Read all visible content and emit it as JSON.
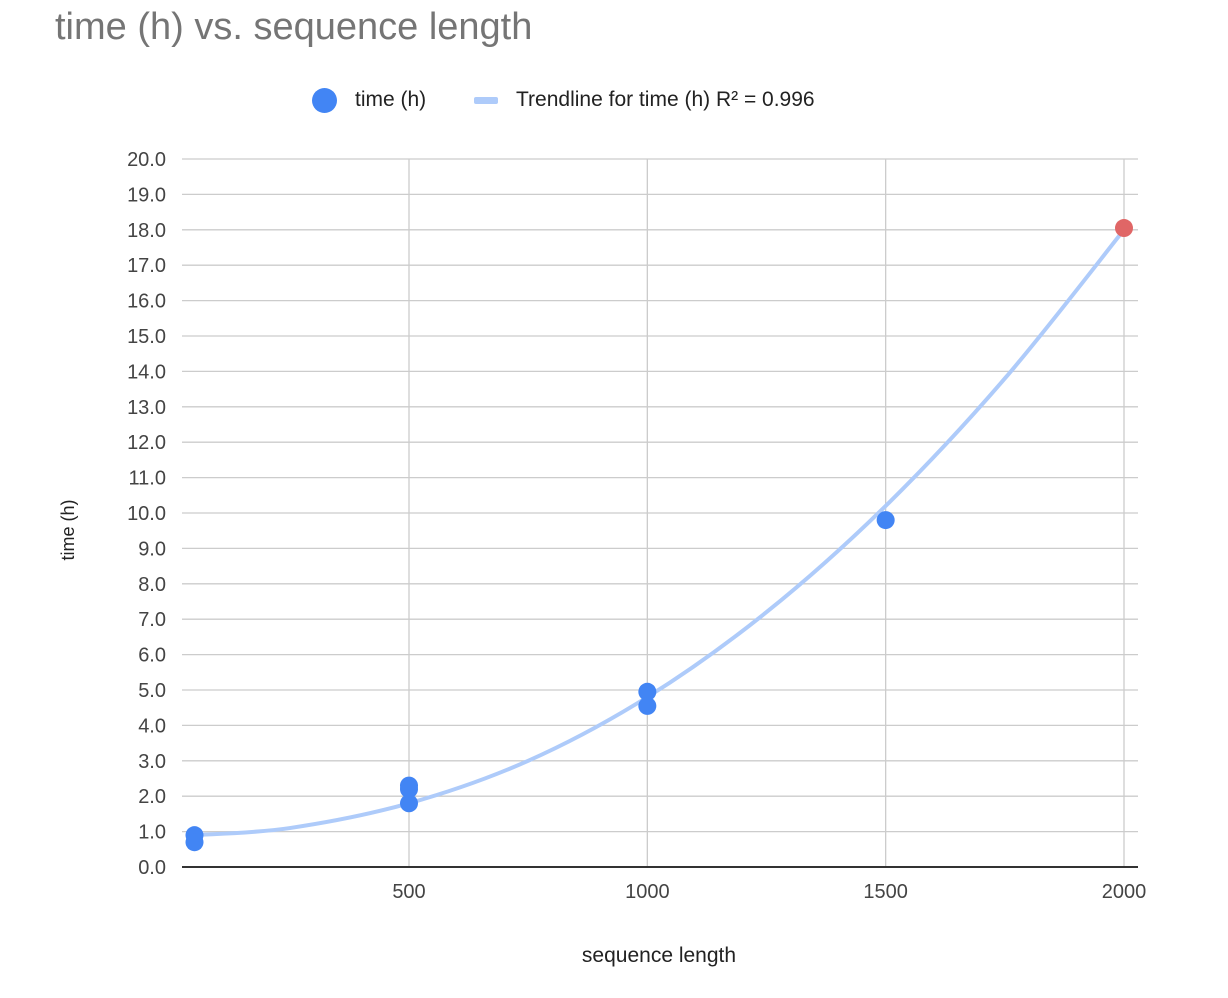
{
  "chart_data": {
    "type": "scatter",
    "title": "time (h) vs. sequence length",
    "xlabel": "sequence length",
    "ylabel": "time (h)",
    "xlim": [
      25,
      2000
    ],
    "ylim": [
      0,
      20
    ],
    "x_ticks": [
      500,
      1000,
      1500,
      2000
    ],
    "y_ticks": [
      0,
      1,
      2,
      3,
      4,
      5,
      6,
      7,
      8,
      9,
      10,
      11,
      12,
      13,
      14,
      15,
      16,
      17,
      18,
      19,
      20
    ],
    "grid": true,
    "legend_position": "top",
    "series": [
      {
        "name": "time (h)",
        "color": "#4285f4",
        "points": [
          {
            "x": 50,
            "y": 0.9
          },
          {
            "x": 50,
            "y": 0.7
          },
          {
            "x": 500,
            "y": 2.3
          },
          {
            "x": 500,
            "y": 2.2
          },
          {
            "x": 500,
            "y": 1.8
          },
          {
            "x": 1000,
            "y": 4.95
          },
          {
            "x": 1000,
            "y": 4.55
          },
          {
            "x": 1500,
            "y": 9.8
          },
          {
            "x": 2000,
            "y": 18.05,
            "color": "#e06666"
          }
        ]
      }
    ],
    "trendline": {
      "name": "Trendline for time (h) R² = 0.996",
      "color": "#aecbfa",
      "type": "polynomial",
      "points": [
        {
          "x": 50,
          "y": 0.9
        },
        {
          "x": 250,
          "y": 1.1
        },
        {
          "x": 500,
          "y": 1.8
        },
        {
          "x": 750,
          "y": 3.0
        },
        {
          "x": 1000,
          "y": 4.8
        },
        {
          "x": 1250,
          "y": 7.2
        },
        {
          "x": 1500,
          "y": 10.2
        },
        {
          "x": 1750,
          "y": 13.8
        },
        {
          "x": 2000,
          "y": 18.0
        }
      ]
    }
  }
}
